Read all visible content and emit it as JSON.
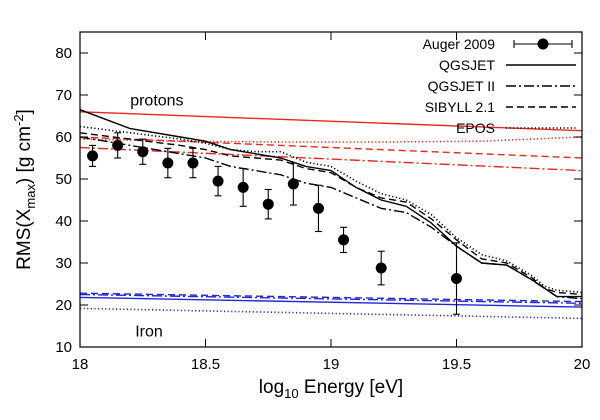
{
  "chart_data": {
    "type": "line",
    "xlabel": {
      "pre": "log",
      "sub": "10",
      "post": " Energy [eV]"
    },
    "ylabel": {
      "pre": "RMS(X",
      "sub": "max",
      "mid": ") [g cm",
      "sup": "-2",
      "post": "]"
    },
    "xlim": [
      18,
      20
    ],
    "ylim": [
      10,
      85
    ],
    "xticks": [
      18,
      18.5,
      19,
      19.5,
      20
    ],
    "xtick_labels": [
      "18",
      "18.5",
      "19",
      "19.5",
      "20"
    ],
    "yticks": [
      10,
      20,
      30,
      40,
      50,
      60,
      70,
      80
    ],
    "ytick_labels": [
      "10",
      "20",
      "30",
      "40",
      "50",
      "60",
      "70",
      "80"
    ],
    "grid": false,
    "legend_position": "top-right",
    "legend": [
      {
        "label": "Auger 2009",
        "style": "points"
      },
      {
        "label": "QGSJET",
        "style": "solid"
      },
      {
        "label": "QGSJET II",
        "style": "dashdot"
      },
      {
        "label": "SIBYLL 2.1",
        "style": "dashed"
      },
      {
        "label": "EPOS",
        "style": "dotted"
      }
    ],
    "annotations": [
      {
        "text": "protons",
        "x": 18.2,
        "y": 67.5
      },
      {
        "text": "Iron",
        "x": 18.22,
        "y": 12.5
      }
    ],
    "colors": {
      "proton": "#e8281e",
      "iron": "#2228d8",
      "mixed": "#000000",
      "data": "#000000"
    },
    "auger_2009": {
      "name": "Auger 2009",
      "points": [
        {
          "x": 18.05,
          "y": 55.5,
          "err": 2.5
        },
        {
          "x": 18.15,
          "y": 58.0,
          "err": 3.0
        },
        {
          "x": 18.25,
          "y": 56.5,
          "err": 3.0
        },
        {
          "x": 18.35,
          "y": 53.8,
          "err": 3.5
        },
        {
          "x": 18.45,
          "y": 53.8,
          "err": 3.5
        },
        {
          "x": 18.55,
          "y": 49.5,
          "err": 3.5
        },
        {
          "x": 18.65,
          "y": 48.0,
          "err": 4.5
        },
        {
          "x": 18.75,
          "y": 44.0,
          "err": 3.5
        },
        {
          "x": 18.85,
          "y": 48.8,
          "err": 5.0
        },
        {
          "x": 18.95,
          "y": 43.0,
          "err": 5.5
        },
        {
          "x": 19.05,
          "y": 35.5,
          "err": 3.0
        },
        {
          "x": 19.2,
          "y": 28.8,
          "err": 4.0
        },
        {
          "x": 19.5,
          "y": 26.3,
          "err": 8.5
        }
      ]
    },
    "series": [
      {
        "group": "proton",
        "model": "QGSJET",
        "style": "solid",
        "x": [
          18,
          20
        ],
        "y": [
          66.0,
          61.5
        ]
      },
      {
        "group": "proton",
        "model": "EPOS",
        "style": "dotted",
        "x": [
          18,
          18.4,
          18.8,
          19.2,
          19.6,
          20
        ],
        "y": [
          59.5,
          59.0,
          58.8,
          58.8,
          59.0,
          60.0
        ]
      },
      {
        "group": "proton",
        "model": "SIBYLL 2.1",
        "style": "dashed",
        "x": [
          18,
          20
        ],
        "y": [
          60.0,
          55.0
        ]
      },
      {
        "group": "proton",
        "model": "QGSJET II",
        "style": "dashdot",
        "x": [
          18,
          20
        ],
        "y": [
          57.5,
          52.0
        ]
      },
      {
        "group": "iron",
        "model": "QGSJET",
        "style": "solid",
        "x": [
          18,
          20
        ],
        "y": [
          21.8,
          19.5
        ]
      },
      {
        "group": "iron",
        "model": "EPOS",
        "style": "dotted",
        "x": [
          18,
          20
        ],
        "y": [
          19.2,
          16.8
        ]
      },
      {
        "group": "iron",
        "model": "SIBYLL 2.1",
        "style": "dashed",
        "x": [
          18,
          20
        ],
        "y": [
          22.8,
          20.8
        ]
      },
      {
        "group": "iron",
        "model": "QGSJET II",
        "style": "dashdot",
        "x": [
          18,
          20
        ],
        "y": [
          22.5,
          20.4
        ]
      },
      {
        "group": "mixed",
        "model": "QGSJET",
        "style": "solid",
        "x": [
          18,
          18.2,
          18.4,
          18.5,
          18.6,
          18.7,
          18.8,
          18.9,
          19.0,
          19.1,
          19.2,
          19.3,
          19.4,
          19.5,
          19.6,
          19.7,
          19.8,
          19.85,
          19.9,
          20
        ],
        "y": [
          66.5,
          62.0,
          60.0,
          59.0,
          57.0,
          56.0,
          55.0,
          53.0,
          52.0,
          48.0,
          45.0,
          43.5,
          39.5,
          34.0,
          30.0,
          29.5,
          26.0,
          24.0,
          22.0,
          22.0
        ]
      },
      {
        "group": "mixed",
        "model": "EPOS",
        "style": "dotted",
        "x": [
          18,
          18.2,
          18.4,
          18.5,
          18.6,
          18.7,
          18.8,
          18.9,
          19.0,
          19.1,
          19.2,
          19.3,
          19.4,
          19.5,
          19.6,
          19.7,
          19.8,
          19.85,
          19.9,
          20
        ],
        "y": [
          62.5,
          61.0,
          59.5,
          58.5,
          57.0,
          56.5,
          56.5,
          54.0,
          53.0,
          49.5,
          46.5,
          45.0,
          41.5,
          36.0,
          32.0,
          30.5,
          27.0,
          24.5,
          23.5,
          23.0
        ]
      },
      {
        "group": "mixed",
        "model": "SIBYLL 2.1",
        "style": "dashed",
        "x": [
          18,
          18.2,
          18.4,
          18.5,
          18.6,
          18.7,
          18.8,
          18.9,
          19.0,
          19.1,
          19.2,
          19.3,
          19.4,
          19.5,
          19.6,
          19.7,
          19.8,
          19.85,
          19.9,
          20
        ],
        "y": [
          61.0,
          59.5,
          58.0,
          57.0,
          55.5,
          55.0,
          54.5,
          52.5,
          51.5,
          48.0,
          45.5,
          44.5,
          40.5,
          35.5,
          31.0,
          30.0,
          26.5,
          24.0,
          23.0,
          22.5
        ]
      },
      {
        "group": "mixed",
        "model": "QGSJET II",
        "style": "dashdot",
        "x": [
          18,
          18.2,
          18.4,
          18.5,
          18.6,
          18.7,
          18.8,
          18.9,
          19.0,
          19.1,
          19.2,
          19.3,
          19.4,
          19.5,
          19.6,
          19.7,
          19.8,
          19.85,
          19.9,
          20
        ],
        "y": [
          60.0,
          58.0,
          56.0,
          55.0,
          53.0,
          52.0,
          51.0,
          49.0,
          48.0,
          45.5,
          43.0,
          42.0,
          38.5,
          34.0,
          30.0,
          29.5,
          26.0,
          24.0,
          22.0,
          21.5
        ]
      }
    ]
  }
}
